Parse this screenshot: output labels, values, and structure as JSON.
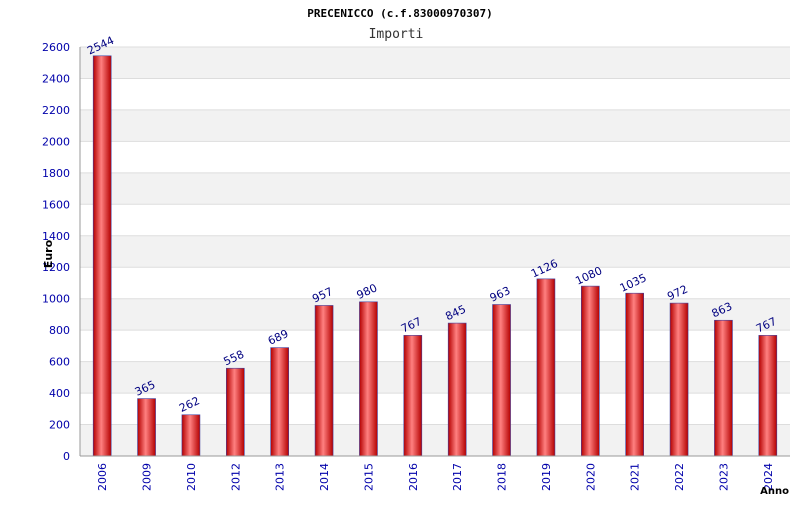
{
  "chart_data": {
    "type": "bar",
    "title": "PRECENICCO (c.f.83000970307)",
    "subtitle": "Importi",
    "xlabel": "Anno",
    "ylabel": "Euro",
    "ylim": [
      0,
      2600
    ],
    "yticks": [
      0,
      200,
      400,
      600,
      800,
      1000,
      1200,
      1400,
      1600,
      1800,
      2000,
      2200,
      2400,
      2600
    ],
    "categories": [
      "2006",
      "2009",
      "2010",
      "2012",
      "2013",
      "2014",
      "2015",
      "2016",
      "2017",
      "2018",
      "2019",
      "2020",
      "2021",
      "2022",
      "2023",
      "2024"
    ],
    "values": [
      2544,
      365,
      262,
      558,
      689,
      957,
      980,
      767,
      845,
      963,
      1126,
      1080,
      1035,
      972,
      863,
      767
    ],
    "grid": true,
    "colors": {
      "bar_dark": "#b40000",
      "bar_light": "#ff8080",
      "bar_mid": "#e61e1e",
      "bar_edge": "#4040a0",
      "band": "#f2f2f2",
      "grid": "#dddddd",
      "axis_text": "#0000aa",
      "title_text": "#000000",
      "label_text": "#000080"
    }
  }
}
